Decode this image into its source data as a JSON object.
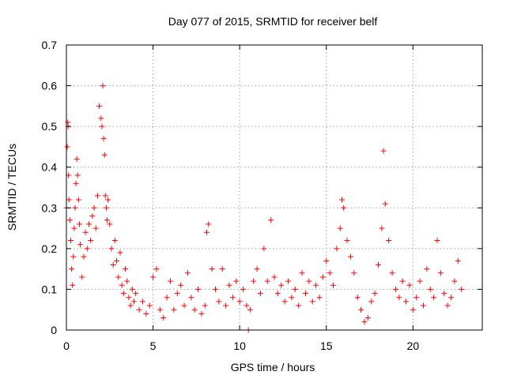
{
  "chart_data": {
    "type": "scatter",
    "title": "Day 077 of 2015, SRMTID for receiver belf",
    "xlabel": "GPS time / hours",
    "ylabel": "SRMTID / TECUs",
    "xlim": [
      0,
      24
    ],
    "ylim": [
      0,
      0.7
    ],
    "x_ticks": [
      0,
      5,
      10,
      15,
      20
    ],
    "x_tick_labels": [
      "0",
      "5",
      "10",
      "15",
      "20"
    ],
    "y_ticks": [
      0,
      0.1,
      0.2,
      0.3,
      0.4,
      0.5,
      0.6,
      0.7
    ],
    "y_tick_labels": [
      "0",
      "0.1",
      "0.2",
      "0.3",
      "0.4",
      "0.5",
      "0.6",
      "0.7"
    ],
    "grid": true,
    "marker": "+",
    "color": "#ff0000",
    "series": [
      {
        "name": "SRMTID",
        "x": [
          0.0,
          0.05,
          0.08,
          0.1,
          0.12,
          0.15,
          0.2,
          0.25,
          0.3,
          0.35,
          0.4,
          0.45,
          0.5,
          0.55,
          0.6,
          0.65,
          0.7,
          0.75,
          0.8,
          0.9,
          1.0,
          1.1,
          1.2,
          1.3,
          1.4,
          1.5,
          1.6,
          1.7,
          1.8,
          1.9,
          2.0,
          2.05,
          2.1,
          2.15,
          2.2,
          2.25,
          2.3,
          2.35,
          2.4,
          2.5,
          2.6,
          2.7,
          2.8,
          2.9,
          3.0,
          3.1,
          3.2,
          3.3,
          3.4,
          3.5,
          3.6,
          3.7,
          3.8,
          3.9,
          4.0,
          4.2,
          4.4,
          4.6,
          4.8,
          5.0,
          5.2,
          5.4,
          5.6,
          5.8,
          6.0,
          6.2,
          6.4,
          6.6,
          6.8,
          7.0,
          7.2,
          7.4,
          7.6,
          7.8,
          8.0,
          8.1,
          8.2,
          8.4,
          8.6,
          8.8,
          9.0,
          9.2,
          9.4,
          9.6,
          9.8,
          10.0,
          10.2,
          10.4,
          10.5,
          10.6,
          10.8,
          11.0,
          11.2,
          11.4,
          11.6,
          11.8,
          12.0,
          12.2,
          12.4,
          12.6,
          12.8,
          13.0,
          13.2,
          13.4,
          13.6,
          13.8,
          14.0,
          14.2,
          14.4,
          14.6,
          14.8,
          15.0,
          15.2,
          15.4,
          15.6,
          15.8,
          15.9,
          16.0,
          16.2,
          16.4,
          16.6,
          16.8,
          17.0,
          17.2,
          17.4,
          17.6,
          17.8,
          18.0,
          18.2,
          18.3,
          18.4,
          18.6,
          18.8,
          19.0,
          19.2,
          19.4,
          19.6,
          19.8,
          20.0,
          20.2,
          20.4,
          20.6,
          20.8,
          21.0,
          21.2,
          21.4,
          21.6,
          21.8,
          22.0,
          22.2,
          22.4,
          22.6,
          22.8
        ],
        "y": [
          0.3,
          0.45,
          0.51,
          0.5,
          0.38,
          0.32,
          0.27,
          0.22,
          0.15,
          0.11,
          0.18,
          0.25,
          0.3,
          0.36,
          0.42,
          0.38,
          0.32,
          0.26,
          0.21,
          0.13,
          0.18,
          0.24,
          0.2,
          0.26,
          0.22,
          0.28,
          0.3,
          0.25,
          0.33,
          0.55,
          0.52,
          0.5,
          0.6,
          0.47,
          0.43,
          0.33,
          0.3,
          0.27,
          0.32,
          0.26,
          0.2,
          0.16,
          0.22,
          0.17,
          0.13,
          0.19,
          0.11,
          0.09,
          0.15,
          0.12,
          0.08,
          0.06,
          0.1,
          0.07,
          0.09,
          0.05,
          0.07,
          0.04,
          0.06,
          0.13,
          0.15,
          0.05,
          0.03,
          0.08,
          0.12,
          0.05,
          0.09,
          0.11,
          0.06,
          0.14,
          0.08,
          0.05,
          0.1,
          0.04,
          0.06,
          0.24,
          0.26,
          0.15,
          0.1,
          0.07,
          0.15,
          0.06,
          0.11,
          0.08,
          0.12,
          0.07,
          0.1,
          0.06,
          0.0,
          0.05,
          0.12,
          0.15,
          0.09,
          0.2,
          0.12,
          0.27,
          0.13,
          0.09,
          0.11,
          0.07,
          0.12,
          0.08,
          0.1,
          0.06,
          0.14,
          0.09,
          0.12,
          0.07,
          0.11,
          0.08,
          0.13,
          0.17,
          0.14,
          0.11,
          0.2,
          0.25,
          0.32,
          0.3,
          0.22,
          0.18,
          0.14,
          0.08,
          0.05,
          0.02,
          0.03,
          0.07,
          0.09,
          0.16,
          0.25,
          0.44,
          0.31,
          0.22,
          0.14,
          0.1,
          0.08,
          0.12,
          0.07,
          0.11,
          0.05,
          0.08,
          0.12,
          0.06,
          0.15,
          0.1,
          0.08,
          0.22,
          0.14,
          0.09,
          0.06,
          0.08,
          0.12,
          0.17,
          0.1
        ]
      }
    ]
  }
}
